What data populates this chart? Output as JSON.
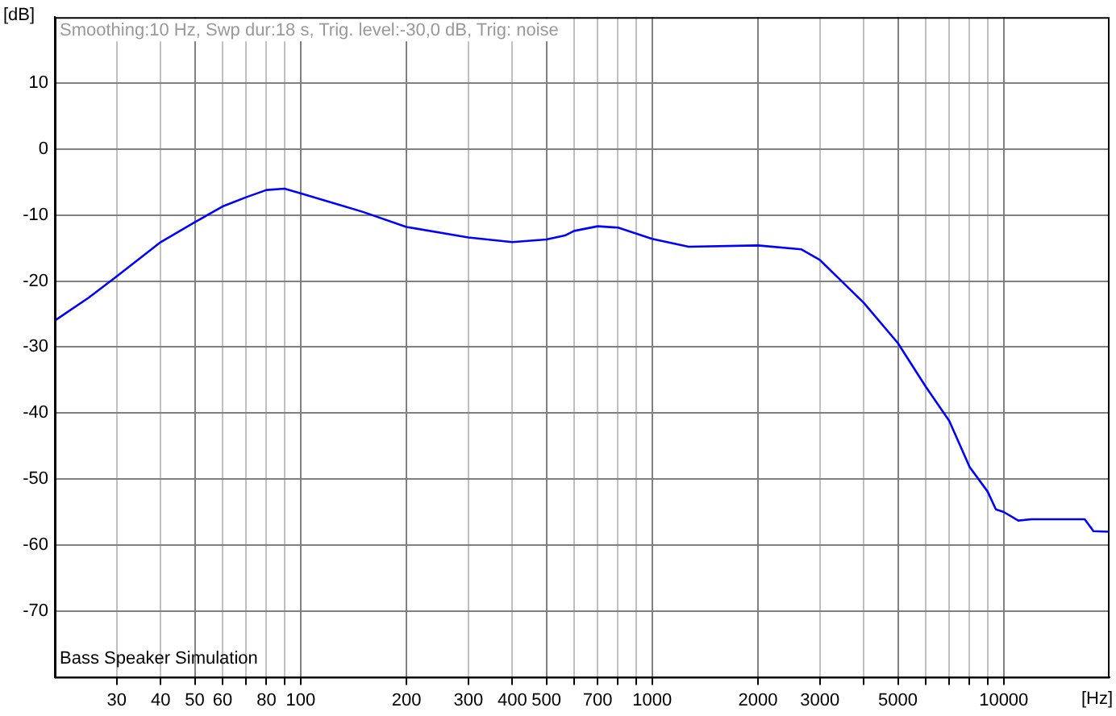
{
  "chart_data": {
    "type": "line",
    "subtitle": "Smoothing:10 Hz, Swp dur:18 s, Trig. level:-30,0 dB, Trig: noise",
    "xlabel": "[Hz]",
    "ylabel": "[dB]",
    "annotations": [
      "Bass Speaker Simulation"
    ],
    "x": [
      20,
      25,
      30,
      40,
      50,
      60,
      70,
      80,
      90,
      100,
      150,
      200,
      300,
      400,
      500,
      565,
      600,
      700,
      800,
      1000,
      1270,
      2000,
      2660,
      3000,
      4000,
      5000,
      6000,
      7000,
      8000,
      9000,
      9500,
      10000,
      11000,
      12000,
      14000,
      17000,
      18000,
      20000
    ],
    "series": [
      {
        "color": "#0000ff",
        "values": [
          -26,
          -22.5,
          -19.3,
          -14.1,
          -11.1,
          -8.7,
          -7.3,
          -6.2,
          -6,
          -6.7,
          -9.5,
          -11.8,
          -13.4,
          -14.1,
          -13.7,
          -13.1,
          -12.4,
          -11.7,
          -11.9,
          -13.6,
          -14.8,
          -14.6,
          -15.2,
          -16.8,
          -23.3,
          -29.4,
          -36,
          -41.2,
          -48.2,
          -51.9,
          -54.6,
          -55,
          -56.3,
          -56.1,
          -56.1,
          -56.1,
          -57.9,
          -58
        ]
      }
    ],
    "xlim": [
      20,
      20000
    ],
    "ylim": [
      -80,
      20
    ],
    "xticks": [
      30,
      40,
      50,
      60,
      {
        "value": 70,
        "label": null
      },
      80,
      {
        "value": 90,
        "label": null
      },
      100,
      200,
      300,
      400,
      500,
      {
        "value": 600,
        "label": null
      },
      700,
      {
        "value": 800,
        "label": null
      },
      {
        "value": 900,
        "label": null
      },
      1000,
      2000,
      3000,
      {
        "value": 4000,
        "label": null
      },
      5000,
      {
        "value": 6000,
        "label": null
      },
      {
        "value": 7000,
        "label": null
      },
      {
        "value": 8000,
        "label": null
      },
      {
        "value": 9000,
        "label": null
      },
      10000
    ],
    "yticks": [
      -70,
      -60,
      -50,
      -40,
      -30,
      -20,
      -10,
      0,
      10
    ],
    "log": "x",
    "grid": true,
    "legend": false,
    "marker": "none",
    "line_style": "solid"
  }
}
